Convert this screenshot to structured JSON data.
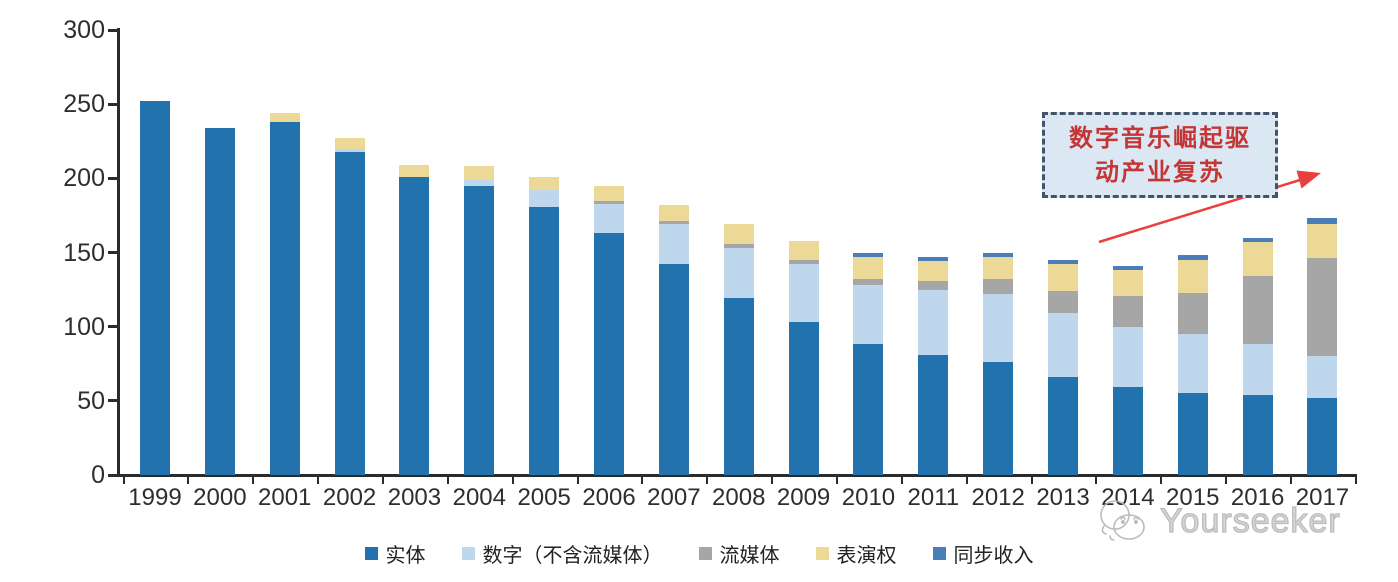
{
  "chart_data": {
    "type": "bar",
    "stacked": true,
    "title": "",
    "xlabel": "",
    "ylabel": "",
    "categories": [
      "1999",
      "2000",
      "2001",
      "2002",
      "2003",
      "2004",
      "2005",
      "2006",
      "2007",
      "2008",
      "2009",
      "2010",
      "2011",
      "2012",
      "2013",
      "2014",
      "2015",
      "2016",
      "2017"
    ],
    "series": [
      {
        "name": "实体",
        "color": "#2272ae",
        "values": [
          252,
          234,
          238,
          218,
          201,
          195,
          181,
          163,
          142,
          119,
          103,
          88,
          81,
          76,
          66,
          59,
          55,
          54,
          52
        ]
      },
      {
        "name": "数字（不含流媒体）",
        "color": "#bed7ec",
        "values": [
          0,
          0,
          0,
          2,
          0,
          4,
          11,
          20,
          27,
          34,
          39,
          40,
          44,
          46,
          43,
          41,
          40,
          34,
          28
        ]
      },
      {
        "name": "流媒体",
        "color": "#a6a6a6",
        "values": [
          0,
          0,
          0,
          0,
          0,
          0,
          0,
          2,
          2,
          3,
          3,
          4,
          6,
          10,
          15,
          21,
          28,
          46,
          66
        ]
      },
      {
        "name": "表演权",
        "color": "#ecd998",
        "values": [
          0,
          0,
          6,
          7,
          8,
          9,
          9,
          10,
          11,
          13,
          13,
          15,
          13,
          15,
          18,
          17,
          22,
          23,
          23
        ]
      },
      {
        "name": "同步收入",
        "color": "#4a7ebb",
        "values": [
          0,
          0,
          0,
          0,
          0,
          0,
          0,
          0,
          0,
          0,
          0,
          3,
          3,
          3,
          3,
          3,
          3,
          3,
          4
        ]
      }
    ],
    "ylim": [
      0,
      300
    ],
    "yticks": [
      0,
      50,
      100,
      150,
      200,
      250,
      300
    ],
    "legend_position": "bottom",
    "grid": false
  },
  "annotation": {
    "line1": "数字音乐崛起驱",
    "line2": "动产业复苏",
    "text_color": "#c43636",
    "border_color": "#44546a",
    "fill_color": "#dbe7f3",
    "arrow_color": "#e8403c"
  },
  "watermark": {
    "text": "Yourseeker",
    "color": "#b5b5b5"
  }
}
